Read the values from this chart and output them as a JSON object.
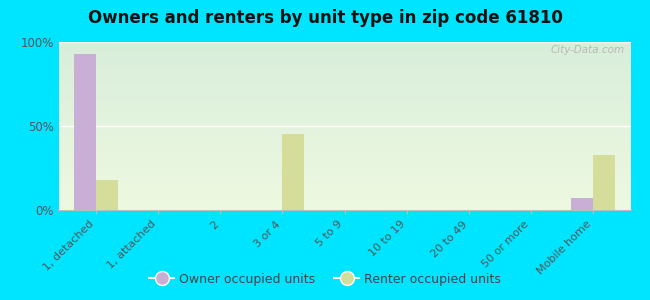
{
  "title": "Owners and renters by unit type in zip code 61810",
  "categories": [
    "1, detached",
    "1, attached",
    "2",
    "3 or 4",
    "5 to 9",
    "10 to 19",
    "20 to 49",
    "50 or more",
    "Mobile home"
  ],
  "owner_values": [
    93,
    0,
    0,
    0,
    0,
    0,
    0,
    0,
    7
  ],
  "renter_values": [
    18,
    0,
    0,
    45,
    0,
    0,
    0,
    0,
    33
  ],
  "owner_color": "#c9aed6",
  "renter_color": "#d4dd99",
  "outer_bg": "#00e5ff",
  "ylim": [
    0,
    100
  ],
  "yticks": [
    0,
    50,
    100
  ],
  "ytick_labels": [
    "0%",
    "50%",
    "100%"
  ],
  "legend_owner": "Owner occupied units",
  "legend_renter": "Renter occupied units",
  "bar_width": 0.35,
  "watermark": "City-Data.com",
  "grad_top": "#d8eeda",
  "grad_bottom": "#eef8e0"
}
